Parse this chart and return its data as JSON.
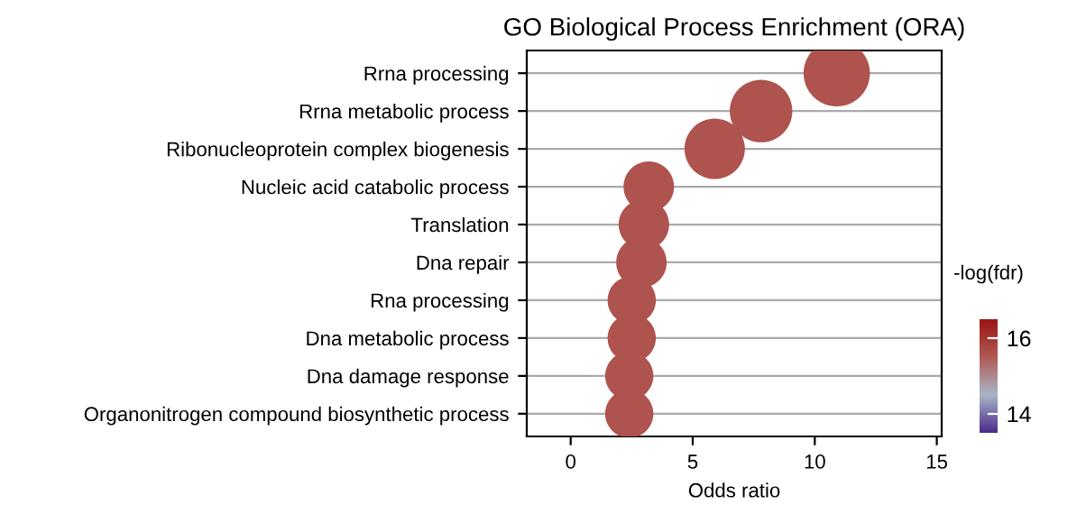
{
  "chart_data": {
    "type": "bubble",
    "title": "GO Biological Process Enrichment (ORA)",
    "xlabel": "Odds ratio",
    "clabel": "-log(fdr)",
    "categories": [
      "Rrna processing",
      "Rrna metabolic process",
      "Ribonucleoprotein complex biogenesis",
      "Nucleic acid catabolic process",
      "Translation",
      "Dna repair",
      "Rna processing",
      "Dna metabolic process",
      "Dna damage response",
      "Organonitrogen compound biosynthetic process"
    ],
    "values": [
      10.9,
      7.8,
      5.9,
      3.2,
      3.0,
      2.9,
      2.5,
      2.5,
      2.4,
      2.4
    ],
    "sizes": [
      1,
      0.89,
      0.83,
      0.58,
      0.58,
      0.58,
      0.53,
      0.53,
      0.53,
      0.53
    ],
    "cvalues": [
      15.6,
      15.6,
      15.6,
      15.6,
      15.6,
      15.6,
      15.6,
      15.6,
      15.6,
      15.6
    ],
    "orientation": "horizontal",
    "xlim": [
      -1.8,
      15.2
    ],
    "xticks": [
      0,
      5,
      10,
      15
    ],
    "clim": [
      13.5,
      16.5
    ],
    "cticks": [
      14,
      16
    ],
    "grid": "y",
    "legend": false
  }
}
